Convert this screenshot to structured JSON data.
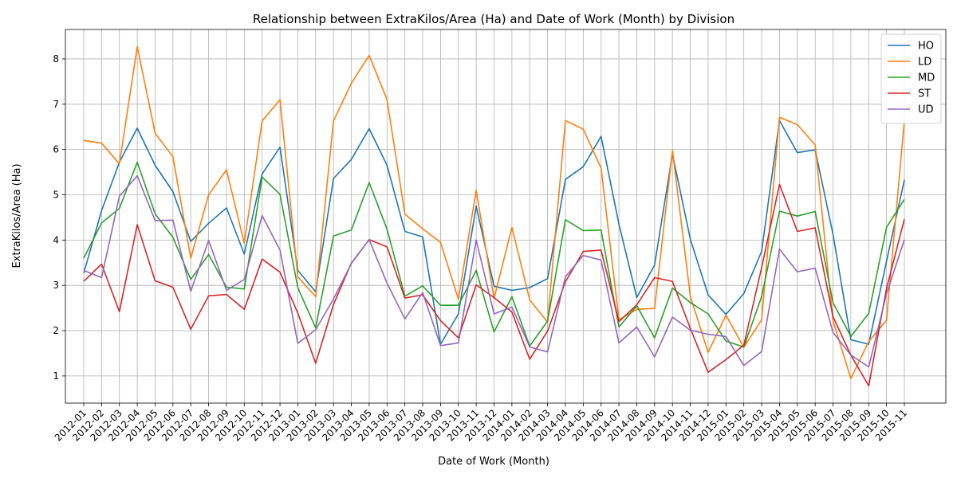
{
  "chart_data": {
    "type": "line",
    "title": "Relationship between ExtraKilos/Area (Ha) and Date of Work (Month) by Division",
    "xlabel": "Date of Work (Month)",
    "ylabel": "ExtraKilos/Area (Ha)",
    "ylim": [
      0.4,
      8.65
    ],
    "yticks": [
      1,
      2,
      3,
      4,
      5,
      6,
      7,
      8
    ],
    "grid": true,
    "legend_position": "top-right",
    "x": [
      "2012-01",
      "2012-02",
      "2012-03",
      "2012-04",
      "2012-05",
      "2012-06",
      "2012-07",
      "2012-08",
      "2012-09",
      "2012-10",
      "2012-11",
      "2012-12",
      "2013-01",
      "2013-02",
      "2013-03",
      "2013-04",
      "2013-05",
      "2013-06",
      "2013-07",
      "2013-08",
      "2013-09",
      "2013-10",
      "2013-11",
      "2013-12",
      "2014-01",
      "2014-02",
      "2014-03",
      "2014-04",
      "2014-05",
      "2014-06",
      "2014-07",
      "2014-08",
      "2014-09",
      "2014-10",
      "2014-11",
      "2014-12",
      "2015-01",
      "2015-02",
      "2015-03",
      "2015-04",
      "2015-05",
      "2015-06",
      "2015-07",
      "2015-08",
      "2015-09",
      "2015-10",
      "2015-11"
    ],
    "series": [
      {
        "name": "HO",
        "color": "#1f77b4",
        "values": [
          3.27,
          4.65,
          5.72,
          6.47,
          5.65,
          5.07,
          3.97,
          4.37,
          4.71,
          3.69,
          5.46,
          6.05,
          3.33,
          2.86,
          5.36,
          5.78,
          6.46,
          5.65,
          4.19,
          4.07,
          1.7,
          2.37,
          4.75,
          2.98,
          2.89,
          2.95,
          3.15,
          5.34,
          5.62,
          6.29,
          4.35,
          2.73,
          3.45,
          5.9,
          4.02,
          2.79,
          2.36,
          2.82,
          3.75,
          6.64,
          5.93,
          5.99,
          4.13,
          1.8,
          1.7,
          3.53,
          5.33
        ]
      },
      {
        "name": "LD",
        "color": "#ff7f0e",
        "values": [
          6.2,
          6.14,
          5.68,
          8.27,
          6.36,
          5.84,
          3.6,
          5.0,
          5.55,
          3.93,
          6.63,
          7.1,
          3.19,
          2.75,
          6.63,
          7.46,
          8.08,
          7.1,
          4.57,
          4.25,
          3.95,
          2.69,
          5.1,
          2.71,
          4.28,
          2.68,
          2.19,
          6.64,
          6.45,
          5.59,
          2.24,
          2.47,
          2.49,
          5.98,
          2.76,
          1.52,
          2.34,
          1.63,
          2.24,
          6.71,
          6.55,
          6.1,
          2.22,
          0.94,
          1.76,
          2.23,
          6.64
        ]
      },
      {
        "name": "MD",
        "color": "#2ca02c",
        "values": [
          3.6,
          4.38,
          4.7,
          5.72,
          4.58,
          4.06,
          3.13,
          3.68,
          2.96,
          2.92,
          5.39,
          5.01,
          2.95,
          2.06,
          4.09,
          4.22,
          5.27,
          4.24,
          2.76,
          2.99,
          2.56,
          2.56,
          3.33,
          1.97,
          2.75,
          1.66,
          2.21,
          4.45,
          4.21,
          4.22,
          2.08,
          2.55,
          1.84,
          2.94,
          2.62,
          2.37,
          1.77,
          1.64,
          2.75,
          4.64,
          4.53,
          4.63,
          2.62,
          1.87,
          2.38,
          4.28,
          4.9
        ]
      },
      {
        "name": "ST",
        "color": "#d62728",
        "values": [
          3.09,
          3.47,
          2.42,
          4.34,
          3.1,
          2.96,
          2.03,
          2.77,
          2.8,
          2.47,
          3.58,
          3.29,
          2.39,
          1.28,
          2.58,
          3.49,
          4.01,
          3.85,
          2.72,
          2.79,
          2.22,
          1.84,
          3.01,
          2.73,
          2.41,
          1.37,
          1.99,
          3.08,
          3.75,
          3.78,
          2.2,
          2.57,
          3.17,
          3.09,
          2.05,
          1.08,
          1.36,
          1.68,
          3.39,
          5.23,
          4.19,
          4.27,
          2.31,
          1.46,
          0.78,
          2.93,
          4.46
        ]
      },
      {
        "name": "UD",
        "color": "#9467bd",
        "values": [
          3.33,
          3.17,
          4.97,
          5.42,
          4.43,
          4.44,
          2.87,
          3.99,
          2.89,
          3.13,
          4.54,
          3.78,
          1.72,
          2.02,
          2.7,
          3.48,
          4.01,
          3.05,
          2.26,
          2.84,
          1.67,
          1.73,
          4.0,
          2.37,
          2.52,
          1.64,
          1.53,
          3.19,
          3.66,
          3.56,
          1.73,
          2.08,
          1.42,
          2.3,
          2.01,
          1.92,
          1.87,
          1.23,
          1.54,
          3.8,
          3.3,
          3.38,
          1.96,
          1.46,
          1.2,
          2.81,
          4.01
        ]
      }
    ]
  }
}
